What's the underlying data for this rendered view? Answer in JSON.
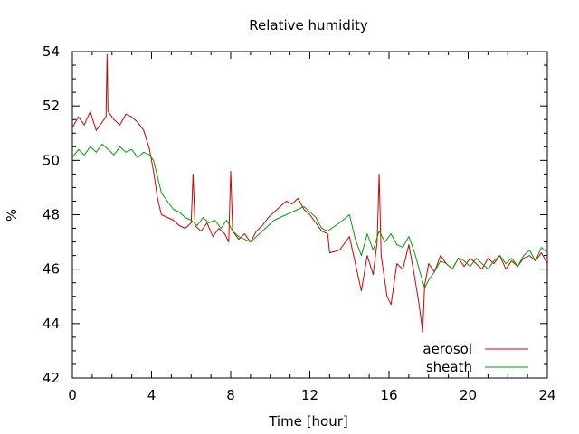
{
  "chart_data": {
    "type": "line",
    "title": "Relative humidity",
    "xlabel": "Time [hour]",
    "ylabel": "%",
    "xlim": [
      0,
      24
    ],
    "ylim": [
      42,
      54
    ],
    "xticks": [
      0,
      4,
      8,
      12,
      16,
      20,
      24
    ],
    "yticks": [
      42,
      44,
      46,
      48,
      50,
      52,
      54
    ],
    "grid": false,
    "legend_position": "bottom-right",
    "series": [
      {
        "name": "aerosol",
        "color": "#d40000",
        "x": [
          0,
          0.3,
          0.6,
          0.9,
          1.2,
          1.5,
          1.7,
          1.75,
          1.8,
          2.1,
          2.4,
          2.7,
          3.0,
          3.3,
          3.6,
          3.9,
          4.1,
          4.3,
          4.5,
          4.8,
          5.1,
          5.4,
          5.7,
          6.0,
          6.1,
          6.2,
          6.5,
          6.8,
          7.1,
          7.4,
          7.7,
          7.9,
          8.0,
          8.1,
          8.4,
          8.7,
          9.0,
          9.3,
          9.6,
          9.9,
          10.2,
          10.5,
          10.8,
          11.1,
          11.4,
          11.7,
          12.0,
          12.3,
          12.6,
          12.9,
          13.0,
          13.5,
          14.0,
          14.3,
          14.6,
          14.9,
          15.2,
          15.4,
          15.5,
          15.6,
          15.9,
          16.1,
          16.4,
          16.7,
          17.0,
          17.3,
          17.5,
          17.7,
          17.8,
          18.0,
          18.3,
          18.6,
          18.9,
          19.2,
          19.5,
          19.8,
          20.1,
          20.4,
          20.7,
          21.0,
          21.3,
          21.6,
          21.9,
          22.2,
          22.5,
          22.8,
          23.1,
          23.4,
          23.7,
          24.0
        ],
        "y": [
          51.2,
          51.6,
          51.3,
          51.8,
          51.1,
          51.4,
          51.6,
          53.9,
          51.8,
          51.5,
          51.3,
          51.7,
          51.6,
          51.4,
          51.1,
          50.4,
          49.6,
          48.6,
          48.0,
          47.9,
          47.8,
          47.6,
          47.5,
          47.7,
          49.5,
          47.6,
          47.4,
          47.7,
          47.2,
          47.5,
          47.3,
          47.0,
          49.6,
          47.4,
          47.1,
          47.3,
          47.0,
          47.4,
          47.6,
          47.9,
          48.1,
          48.3,
          48.5,
          48.4,
          48.6,
          48.2,
          48.0,
          47.7,
          47.4,
          47.3,
          46.6,
          46.7,
          47.2,
          46.2,
          45.2,
          46.5,
          45.8,
          47.0,
          49.5,
          46.5,
          45.0,
          44.7,
          46.2,
          46.0,
          46.9,
          45.7,
          44.8,
          43.7,
          45.4,
          46.2,
          45.9,
          46.5,
          46.2,
          46.0,
          46.4,
          46.1,
          46.4,
          46.2,
          46.0,
          46.4,
          46.2,
          46.5,
          46.0,
          46.3,
          46.1,
          46.4,
          46.5,
          46.3,
          46.6,
          46.2
        ]
      },
      {
        "name": "sheath",
        "color": "#00a000",
        "x": [
          0,
          0.3,
          0.6,
          0.9,
          1.2,
          1.5,
          1.8,
          2.1,
          2.4,
          2.7,
          3.0,
          3.3,
          3.6,
          3.9,
          4.1,
          4.3,
          4.5,
          4.8,
          5.1,
          5.4,
          5.7,
          6.0,
          6.3,
          6.6,
          6.9,
          7.2,
          7.5,
          7.8,
          8.1,
          8.4,
          8.7,
          9.0,
          9.3,
          9.6,
          9.9,
          10.2,
          10.5,
          10.8,
          11.1,
          11.4,
          11.7,
          12.0,
          12.3,
          12.6,
          12.9,
          13.5,
          14.0,
          14.3,
          14.6,
          14.9,
          15.2,
          15.5,
          15.8,
          16.1,
          16.4,
          16.7,
          17.0,
          17.3,
          17.6,
          17.8,
          18.0,
          18.3,
          18.6,
          18.9,
          19.2,
          19.5,
          19.8,
          20.1,
          20.4,
          20.7,
          21.0,
          21.3,
          21.6,
          21.9,
          22.2,
          22.5,
          22.8,
          23.1,
          23.4,
          23.7,
          24.0
        ],
        "y": [
          50.1,
          50.4,
          50.2,
          50.5,
          50.3,
          50.6,
          50.4,
          50.2,
          50.5,
          50.3,
          50.4,
          50.1,
          50.3,
          50.2,
          50.0,
          49.4,
          48.8,
          48.5,
          48.2,
          48.1,
          47.9,
          47.8,
          47.6,
          47.9,
          47.7,
          47.8,
          47.5,
          47.8,
          47.4,
          47.2,
          47.1,
          47.0,
          47.2,
          47.4,
          47.6,
          47.8,
          47.9,
          48.0,
          48.1,
          48.2,
          48.3,
          48.1,
          47.9,
          47.5,
          47.4,
          47.7,
          48.0,
          47.1,
          46.5,
          47.3,
          46.7,
          47.4,
          47.0,
          47.3,
          46.9,
          46.8,
          47.2,
          46.6,
          45.8,
          45.3,
          45.6,
          45.9,
          46.3,
          46.2,
          46.0,
          46.4,
          46.3,
          46.1,
          46.4,
          46.2,
          46.0,
          46.3,
          46.5,
          46.2,
          46.4,
          46.1,
          46.5,
          46.7,
          46.3,
          46.8,
          46.6
        ]
      }
    ]
  }
}
